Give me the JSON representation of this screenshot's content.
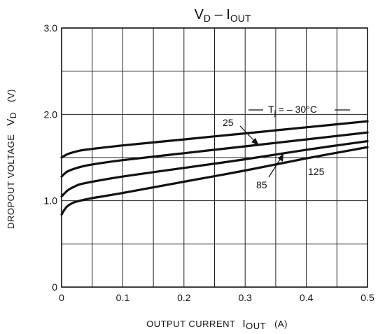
{
  "chart_data": {
    "type": "line",
    "title": {
      "main": "V",
      "main_sub": "D",
      "sep": " – ",
      "second": "I",
      "second_sub": "OUT"
    },
    "xlabel": {
      "text": "OUTPUT CURRENT",
      "sym": "I",
      "sym_sub": "OUT",
      "unit": "(A)"
    },
    "ylabel": {
      "text": "DROPOUT VOLTAGE",
      "sym": "V",
      "sym_sub": "D",
      "unit": "(V)"
    },
    "xlim": [
      0,
      0.5
    ],
    "ylim": [
      0,
      3.0
    ],
    "x_ticks": [
      0,
      0.1,
      0.2,
      0.3,
      0.4,
      0.5
    ],
    "x_tick_labels": [
      "0",
      "0.1",
      "0.2",
      "0.3",
      "0.4",
      "0.5"
    ],
    "y_ticks": [
      0,
      1.0,
      2.0,
      3.0
    ],
    "y_tick_labels": [
      "0",
      "1.0",
      "2.0",
      "3.0"
    ],
    "grid": true,
    "series": [
      {
        "name": "-30",
        "x": [
          0,
          0.01,
          0.03,
          0.05,
          0.1,
          0.2,
          0.3,
          0.4,
          0.5
        ],
        "y": [
          1.5,
          1.54,
          1.58,
          1.6,
          1.64,
          1.71,
          1.78,
          1.85,
          1.92
        ]
      },
      {
        "name": "25",
        "x": [
          0,
          0.01,
          0.03,
          0.05,
          0.1,
          0.2,
          0.3,
          0.4,
          0.5
        ],
        "y": [
          1.28,
          1.34,
          1.39,
          1.42,
          1.47,
          1.55,
          1.63,
          1.71,
          1.79
        ]
      },
      {
        "name": "85",
        "x": [
          0,
          0.01,
          0.02,
          0.03,
          0.05,
          0.1,
          0.2,
          0.3,
          0.4,
          0.5
        ],
        "y": [
          1.05,
          1.12,
          1.16,
          1.19,
          1.22,
          1.28,
          1.38,
          1.48,
          1.59,
          1.69
        ]
      },
      {
        "name": "125",
        "x": [
          0,
          0.005,
          0.01,
          0.02,
          0.03,
          0.05,
          0.1,
          0.2,
          0.3,
          0.4,
          0.5
        ],
        "y": [
          0.84,
          0.9,
          0.94,
          0.98,
          1.0,
          1.03,
          1.09,
          1.22,
          1.35,
          1.49,
          1.62
        ]
      }
    ],
    "annotations": {
      "tj_prefix": "T",
      "tj_sub": "j",
      "tj_value": " = – 30°C",
      "label_25": "25",
      "label_85": "85",
      "label_125": "125"
    }
  }
}
